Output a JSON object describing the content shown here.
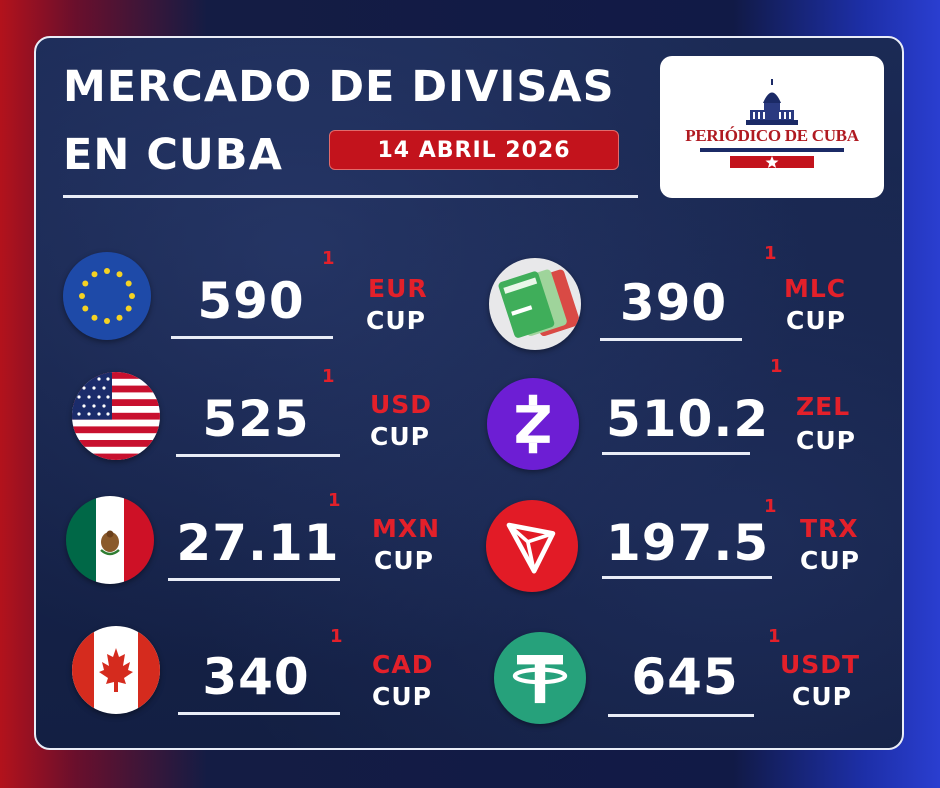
{
  "header": {
    "title_line1": "MERCADO DE DIVISAS",
    "title_line2": "EN CUBA",
    "date": "14 ABRIL 2026"
  },
  "logo": {
    "text": "PERIÓDICO DE CUBA"
  },
  "rates": [
    {
      "code": "EUR",
      "quote": "CUP",
      "value": "590",
      "unit": "1",
      "icon": "eu-flag-icon"
    },
    {
      "code": "USD",
      "quote": "CUP",
      "value": "525",
      "unit": "1",
      "icon": "us-flag-icon"
    },
    {
      "code": "MXN",
      "quote": "CUP",
      "value": "27.11",
      "unit": "1",
      "icon": "mexico-flag-icon"
    },
    {
      "code": "CAD",
      "quote": "CUP",
      "value": "340",
      "unit": "1",
      "icon": "canada-flag-icon"
    },
    {
      "code": "MLC",
      "quote": "CUP",
      "value": "390",
      "unit": "1",
      "icon": "mlc-cards-icon"
    },
    {
      "code": "ZEL",
      "quote": "CUP",
      "value": "510.2",
      "unit": "1",
      "icon": "zelle-icon"
    },
    {
      "code": "TRX",
      "quote": "CUP",
      "value": "197.5",
      "unit": "1",
      "icon": "tron-icon"
    },
    {
      "code": "USDT",
      "quote": "CUP",
      "value": "645",
      "unit": "1",
      "icon": "tether-icon"
    }
  ],
  "colors": {
    "accent_red": "#e3202a",
    "badge_red": "#c3131c",
    "card_bg": "#16234a",
    "zelle_purple": "#6d1ed4",
    "tron_red": "#e21b26",
    "tether_green": "#26a17b"
  }
}
